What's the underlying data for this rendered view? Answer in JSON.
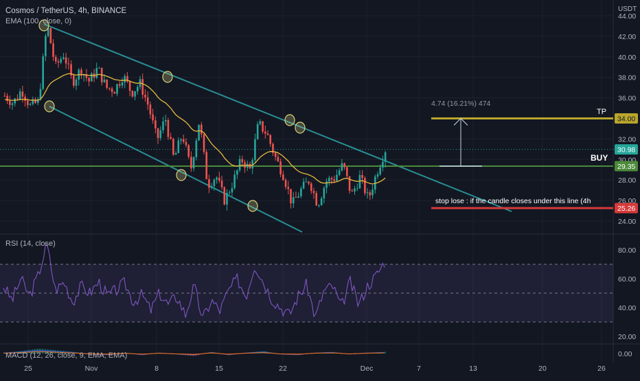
{
  "header": {
    "symbol_title": "Cosmos / TetherUS, 4h, BINANCE",
    "ema_legend": "EMA (100, close, 0)",
    "rsi_legend": "RSI (14, close)",
    "macd_legend": "MACD (12, 26, close, 9, EMA, EMA)",
    "currency": "USDT"
  },
  "colors": {
    "background": "#131722",
    "up": "#26a69a",
    "down": "#ef5350",
    "ema": "#e7b940",
    "channel": "#2a8f95",
    "tp_line": "#b9a62c",
    "buy_line": "#4c8a3a",
    "stop_line": "#d63a3a",
    "rsi_line": "#7e57c2",
    "current_price": "#26a69a"
  },
  "annotations": {
    "measure": "4.74 (16.21%) 474",
    "tp": "TP",
    "buy": "BUY",
    "stop": "stop lose : if the candle closes under this line (4h"
  },
  "chart_data": [
    {
      "type": "candlestick",
      "title": "Cosmos / TetherUS, 4h, BINANCE",
      "y_ticks": [
        "44.00",
        "42.00",
        "40.00",
        "38.00",
        "36.00",
        "32.00",
        "30.00",
        "28.00",
        "26.00",
        "24.00"
      ],
      "ylim": [
        23.0,
        45.0
      ],
      "x_ticks": [
        "25",
        "Nov",
        "8",
        "15",
        "22",
        "Dec",
        "7",
        "13",
        "20",
        "26"
      ],
      "key_prices": {
        "take_profit": {
          "label": "34.00",
          "value": 34.0
        },
        "current": {
          "label": "30.98",
          "value": 30.98
        },
        "buy": {
          "label": "29.35",
          "value": 29.35
        },
        "stop_loss": {
          "label": "25.26",
          "value": 25.26
        }
      },
      "ema_period": 100,
      "approx_close_path": [
        36.2,
        35.5,
        36.8,
        35.2,
        35.6,
        43.2,
        39.0,
        40.3,
        37.5,
        38.8,
        37.6,
        38.9,
        37.0,
        36.8,
        38.2,
        36.5,
        37.4,
        35.2,
        31.9,
        34.0,
        30.0,
        32.5,
        29.0,
        33.8,
        27.5,
        28.4,
        26.0,
        27.8,
        30.0,
        29.0,
        33.5,
        32.5,
        30.2,
        28.4,
        25.6,
        27.0,
        28.0,
        25.6,
        27.9,
        28.2,
        29.5,
        26.5,
        28.3,
        26.1,
        28.8,
        30.98
      ]
    },
    {
      "type": "line",
      "title": "RSI (14, close)",
      "y_ticks": [
        "80.00",
        "60.00",
        "40.00",
        "20.00"
      ],
      "ylim": [
        10,
        90
      ],
      "band": [
        30,
        70
      ],
      "midline": 50,
      "approx_values": [
        55,
        45,
        60,
        48,
        62,
        84,
        52,
        58,
        44,
        55,
        50,
        58,
        48,
        52,
        57,
        44,
        49,
        38,
        50,
        42,
        48,
        35,
        55,
        32,
        45,
        38,
        52,
        60,
        48,
        70,
        58,
        46,
        40,
        35,
        48,
        56,
        33,
        52,
        55,
        40,
        58,
        42,
        55,
        62,
        72
      ]
    },
    {
      "type": "bar",
      "title": "MACD (12, 26, close, 9, EMA, EMA)",
      "y_ticks": [
        "0.00"
      ],
      "ylim": [
        -1,
        1
      ],
      "approx_values": [
        0.1,
        0.3,
        0.6,
        0.4,
        0.2,
        -0.1,
        -0.2,
        0.1,
        -0.2,
        0.1,
        -0.1,
        -0.3,
        0.2,
        -0.2,
        0.1,
        0.3,
        -0.1,
        -0.2,
        0.1,
        0.2,
        -0.1,
        0.1,
        0.2
      ]
    }
  ]
}
